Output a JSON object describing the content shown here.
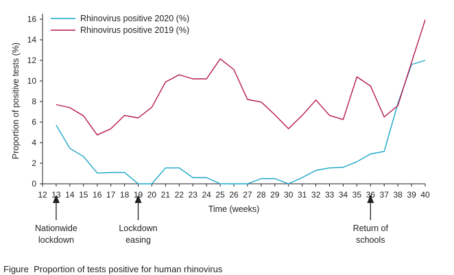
{
  "chart_data": {
    "type": "line",
    "xlabel": "Time (weeks)",
    "ylabel": "Proportion of positive tests (%)",
    "xlim": [
      12,
      40
    ],
    "ylim": [
      0,
      16
    ],
    "x_ticks": [
      12,
      13,
      14,
      15,
      16,
      17,
      18,
      19,
      20,
      21,
      22,
      23,
      24,
      25,
      26,
      27,
      28,
      29,
      30,
      31,
      32,
      33,
      34,
      35,
      36,
      37,
      38,
      39,
      40
    ],
    "y_ticks": [
      0,
      2,
      4,
      6,
      8,
      10,
      12,
      14,
      16
    ],
    "grid": false,
    "legend_position": "top-left",
    "series": [
      {
        "name": "Rhinovirus positive 2020 (%)",
        "color": "#1aa6c8",
        "x": [
          13,
          14,
          15,
          16,
          17,
          18,
          19,
          20,
          21,
          22,
          23,
          24,
          25,
          26,
          27,
          28,
          29,
          30,
          31,
          32,
          33,
          34,
          35,
          36,
          37,
          38,
          39,
          40
        ],
        "values": [
          5.7,
          3.45,
          2.65,
          1.05,
          1.1,
          1.1,
          0.0,
          0.0,
          1.55,
          1.55,
          0.6,
          0.6,
          0.0,
          0.0,
          0.0,
          0.5,
          0.5,
          0.0,
          0.6,
          1.3,
          1.55,
          1.6,
          2.15,
          2.9,
          3.15,
          7.8,
          11.6,
          12.0
        ]
      },
      {
        "name": "Rhinovirus positive 2019 (%)",
        "color": "#b5174e",
        "x": [
          13,
          14,
          15,
          16,
          17,
          18,
          19,
          20,
          21,
          22,
          23,
          24,
          25,
          26,
          27,
          28,
          29,
          30,
          31,
          32,
          33,
          34,
          35,
          36,
          37,
          38,
          39,
          40
        ],
        "values": [
          7.7,
          7.4,
          6.6,
          4.75,
          5.35,
          6.65,
          6.4,
          7.45,
          9.9,
          10.6,
          10.2,
          10.2,
          12.15,
          11.1,
          8.2,
          7.95,
          6.7,
          5.35,
          6.65,
          8.15,
          6.65,
          6.25,
          10.4,
          9.5,
          6.5,
          7.6,
          11.8,
          15.95
        ]
      }
    ],
    "annotations": [
      {
        "x": 13,
        "lines": [
          "Nationwide",
          "lockdown"
        ]
      },
      {
        "x": 19,
        "lines": [
          "Lockdown",
          "easing"
        ]
      },
      {
        "x": 36,
        "lines": [
          "Return of",
          "schools"
        ]
      }
    ]
  },
  "caption": {
    "label": "Figure",
    "text": "Proportion of tests positive for human rhinovirus"
  }
}
